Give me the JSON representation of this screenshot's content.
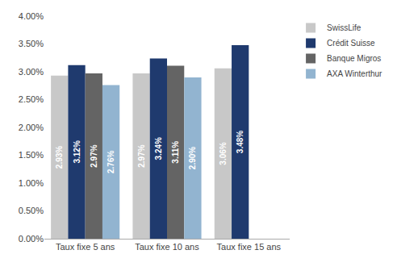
{
  "chart_data": {
    "type": "bar",
    "categories": [
      "Taux fixe 5 ans",
      "Taux fixe 10 ans",
      "Taux fixe 15 ans"
    ],
    "series": [
      {
        "name": "SwissLife",
        "color": "#c8c8c8",
        "values": [
          0.0293,
          0.0297,
          0.0306
        ],
        "value_labels": [
          "2.93%",
          "2.97%",
          "3.06%"
        ]
      },
      {
        "name": "Crédit Suisse",
        "color": "#1f3a6e",
        "values": [
          0.0312,
          0.0324,
          0.0348
        ],
        "value_labels": [
          "3.12%",
          "3.24%",
          "3.48%"
        ]
      },
      {
        "name": "Banque Migros",
        "color": "#646464",
        "values": [
          0.0297,
          0.0311,
          null
        ],
        "value_labels": [
          "2.97%",
          "3.11%",
          null
        ]
      },
      {
        "name": "AXA Winterthur",
        "color": "#92b4d0",
        "values": [
          0.0276,
          0.029,
          null
        ],
        "value_labels": [
          "2.76%",
          "2.90%",
          null
        ]
      }
    ],
    "ylim": [
      0,
      0.04
    ],
    "yticks": [
      {
        "value": 0.0,
        "label": "0.00%"
      },
      {
        "value": 0.005,
        "label": "0.50%"
      },
      {
        "value": 0.01,
        "label": "1.00%"
      },
      {
        "value": 0.015,
        "label": "1.50%"
      },
      {
        "value": 0.02,
        "label": "2.00%"
      },
      {
        "value": 0.025,
        "label": "2.50%"
      },
      {
        "value": 0.03,
        "label": "3.00%"
      },
      {
        "value": 0.035,
        "label": "3.50%"
      },
      {
        "value": 0.04,
        "label": "4.00%"
      }
    ],
    "grid": false,
    "legend": "upper right",
    "data_labels": true
  }
}
